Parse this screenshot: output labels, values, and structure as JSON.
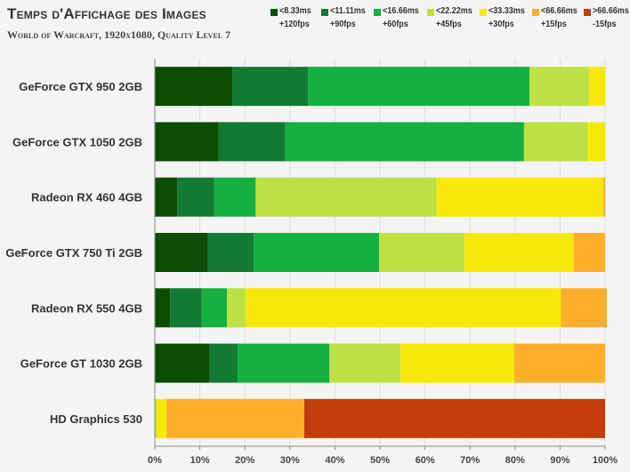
{
  "title": "Temps d'Affichage des Images",
  "subtitle": "World of Warcraft, 1920x1080, Quality Level 7",
  "legend": [
    {
      "line1": "<8.33ms",
      "line2": "+120fps",
      "color": "#0b4d04"
    },
    {
      "line1": "<11.11ms",
      "line2": "+90fps",
      "color": "#137a33"
    },
    {
      "line1": "<16.66ms",
      "line2": "+60fps",
      "color": "#14b040"
    },
    {
      "line1": "<22.22ms",
      "line2": "+45fps",
      "color": "#bde144"
    },
    {
      "line1": "<33.33ms",
      "line2": "+30fps",
      "color": "#f6e90a"
    },
    {
      "line1": "<66.66ms",
      "line2": "+15fps",
      "color": "#fbaf2c"
    },
    {
      "line1": ">66.66ms",
      "line2": "-15fps",
      "color": "#c13d0b"
    }
  ],
  "chart_data": {
    "type": "bar",
    "orientation": "horizontal",
    "stacked": true,
    "categories": [
      "GeForce GTX 950 2GB",
      "GeForce GTX 1050 2GB",
      "Radeon RX 460 4GB",
      "GeForce GTX 750 Ti 2GB",
      "Radeon RX 550 4GB",
      "GeForce GT 1030 2GB",
      "HD Graphics 530"
    ],
    "series": [
      {
        "name": "<8.33ms +120fps",
        "color": "#0b4d04",
        "values": [
          17.2,
          14.2,
          5.0,
          11.8,
          3.4,
          12.2,
          0.0
        ]
      },
      {
        "name": "<11.11ms +90fps",
        "color": "#137a33",
        "values": [
          16.8,
          14.8,
          8.2,
          10.2,
          7.0,
          6.2,
          0.0
        ]
      },
      {
        "name": "<16.66ms +60fps",
        "color": "#14b040",
        "values": [
          49.2,
          53.0,
          9.2,
          27.8,
          5.6,
          20.4,
          0.0
        ]
      },
      {
        "name": "<22.22ms +45fps",
        "color": "#bde144",
        "values": [
          13.2,
          14.2,
          40.2,
          19.0,
          4.2,
          15.8,
          0.4
        ]
      },
      {
        "name": "<33.33ms +30fps",
        "color": "#f6e90a",
        "values": [
          3.6,
          3.8,
          37.0,
          24.2,
          70.0,
          25.2,
          2.2
        ]
      },
      {
        "name": "<66.66ms +15fps",
        "color": "#fbaf2c",
        "values": [
          0.0,
          0.0,
          0.4,
          7.0,
          10.2,
          20.2,
          30.6
        ]
      },
      {
        "name": ">66.66ms -15fps",
        "color": "#c13d0b",
        "values": [
          0.0,
          0.0,
          0.0,
          0.0,
          0.0,
          0.0,
          66.8
        ]
      }
    ],
    "xlim": [
      0,
      100
    ],
    "xticks": [
      "0%",
      "10%",
      "20%",
      "30%",
      "40%",
      "50%",
      "60%",
      "70%",
      "80%",
      "90%",
      "100%"
    ],
    "grid": true
  }
}
